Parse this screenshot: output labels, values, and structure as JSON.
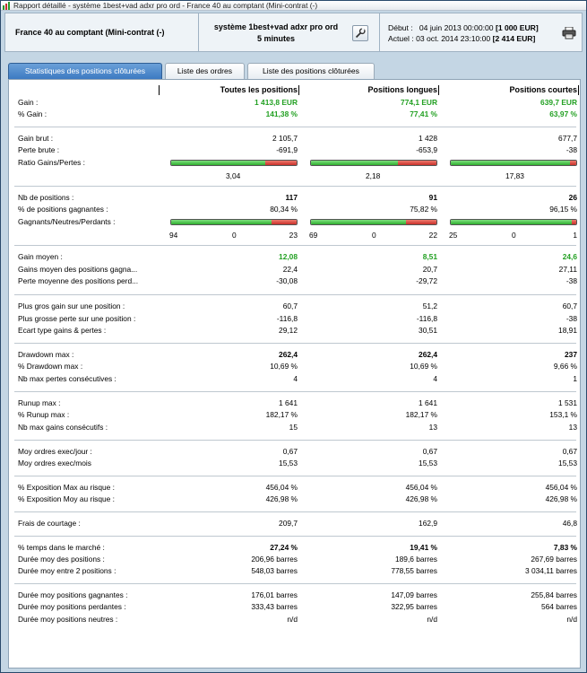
{
  "window": {
    "title": "Rapport détaillé - système 1best+vad adxr pro ord - France 40 au comptant (Mini-contrat  (-)"
  },
  "header": {
    "instrument": "France 40 au comptant (Mini-contrat  (-)",
    "system_name": "système 1best+vad adxr pro ord",
    "period": "5 minutes",
    "start_label": "Début :",
    "start_date": "04 juin 2013 00:00:00",
    "start_value": "[1 000 EUR]",
    "current_label": "Actuel :",
    "current_date": "03 oct. 2014 23:10:00",
    "current_value": "[2 414 EUR]"
  },
  "tabs": [
    {
      "label": "Statistiques des positions clôturées",
      "active": true
    },
    {
      "label": "Liste des ordres",
      "active": false
    },
    {
      "label": "Liste des positions clôturées",
      "active": false
    }
  ],
  "columns": [
    "Toutes les positions",
    "Positions longues",
    "Positions courtes"
  ],
  "rows": [
    {
      "label": "Gain :",
      "v": [
        "1 413,8 EUR",
        "774,1 EUR",
        "639,7 EUR"
      ],
      "style": "green"
    },
    {
      "label": "% Gain :",
      "v": [
        "141,38 %",
        "77,41 %",
        "63,97 %"
      ],
      "style": "green"
    },
    {
      "label": "Gain brut :",
      "v": [
        "2 105,7",
        "1 428",
        "677,7"
      ]
    },
    {
      "label": "Perte brute :",
      "v": [
        "-691,9",
        "-653,9",
        "-38"
      ]
    },
    {
      "label": "Ratio Gains/Pertes :",
      "v": [
        "",
        "",
        ""
      ]
    },
    {
      "label": "Nb de positions :",
      "v": [
        "117",
        "91",
        "26"
      ],
      "style": "bold"
    },
    {
      "label": "% de positions gagnantes :",
      "v": [
        "80,34 %",
        "75,82 %",
        "96,15 %"
      ]
    },
    {
      "label": "Gagnants/Neutres/Perdants :",
      "v": [
        "",
        "",
        ""
      ]
    },
    {
      "label": "Gain moyen :",
      "v": [
        "12,08",
        "8,51",
        "24,6"
      ],
      "style": "green"
    },
    {
      "label": "Gains moyen des positions gagna...",
      "v": [
        "22,4",
        "20,7",
        "27,11"
      ]
    },
    {
      "label": "Perte moyenne des positions perd...",
      "v": [
        "-30,08",
        "-29,72",
        "-38"
      ]
    },
    {
      "label": "Plus gros gain sur une position :",
      "v": [
        "60,7",
        "51,2",
        "60,7"
      ]
    },
    {
      "label": "Plus grosse perte sur une position :",
      "v": [
        "-116,8",
        "-116,8",
        "-38"
      ]
    },
    {
      "label": "Ecart type gains & pertes :",
      "v": [
        "29,12",
        "30,51",
        "18,91"
      ]
    },
    {
      "label": "Drawdown max :",
      "v": [
        "262,4",
        "262,4",
        "237"
      ],
      "style": "bold"
    },
    {
      "label": "% Drawdown max :",
      "v": [
        "10,69 %",
        "10,69 %",
        "9,66 %"
      ]
    },
    {
      "label": "Nb max pertes consécutives :",
      "v": [
        "4",
        "4",
        "1"
      ]
    },
    {
      "label": "Runup max :",
      "v": [
        "1 641",
        "1 641",
        "1 531"
      ]
    },
    {
      "label": "% Runup max :",
      "v": [
        "182,17 %",
        "182,17 %",
        "153,1 %"
      ]
    },
    {
      "label": "Nb max gains consécutifs :",
      "v": [
        "15",
        "13",
        "13"
      ]
    },
    {
      "label": "Moy ordres exec/jour :",
      "v": [
        "0,67",
        "0,67",
        "0,67"
      ]
    },
    {
      "label": "Moy ordres exec/mois",
      "v": [
        "15,53",
        "15,53",
        "15,53"
      ]
    },
    {
      "label": "% Exposition Max au risque :",
      "v": [
        "456,04 %",
        "456,04 %",
        "456,04 %"
      ]
    },
    {
      "label": "% Exposition Moy au risque :",
      "v": [
        "426,98 %",
        "426,98 %",
        "426,98 %"
      ]
    },
    {
      "label": "Frais de courtage :",
      "v": [
        "209,7",
        "162,9",
        "46,8"
      ]
    },
    {
      "label": "% temps dans le marché :",
      "v": [
        "27,24 %",
        "19,41 %",
        "7,83 %"
      ],
      "style": "bold"
    },
    {
      "label": "Durée moy des positions :",
      "v": [
        "206,96 barres",
        "189,6 barres",
        "267,69 barres"
      ]
    },
    {
      "label": "Durée moy entre 2 positions :",
      "v": [
        "548,03 barres",
        "778,55 barres",
        "3 034,11 barres"
      ]
    },
    {
      "label": "Durée moy positions gagnantes :",
      "v": [
        "176,01 barres",
        "147,09 barres",
        "255,84 barres"
      ]
    },
    {
      "label": "Durée moy positions perdantes :",
      "v": [
        "333,43 barres",
        "322,95 barres",
        "564 barres"
      ]
    },
    {
      "label": "Durée moy positions neutres :",
      "v": [
        "n/d",
        "n/d",
        "n/d"
      ]
    }
  ],
  "ratio_bars": [
    {
      "value": "3,04",
      "win_fraction": 0.75
    },
    {
      "value": "2,18",
      "win_fraction": 0.69
    },
    {
      "value": "17,83",
      "win_fraction": 0.95
    }
  ],
  "wnl_bars": [
    {
      "win": "94",
      "neutral": "0",
      "loss": "23",
      "win_fraction": 0.8034
    },
    {
      "win": "69",
      "neutral": "0",
      "loss": "22",
      "win_fraction": 0.7582
    },
    {
      "win": "25",
      "neutral": "0",
      "loss": "1",
      "win_fraction": 0.9615
    }
  ],
  "colors": {
    "gain_green": "#22a022",
    "bar_green": "#2fae2f",
    "bar_red": "#c8302a",
    "tab_active": "#3d7ac2"
  },
  "icons": [
    "app-icon",
    "wrench-icon",
    "printer-icon"
  ]
}
